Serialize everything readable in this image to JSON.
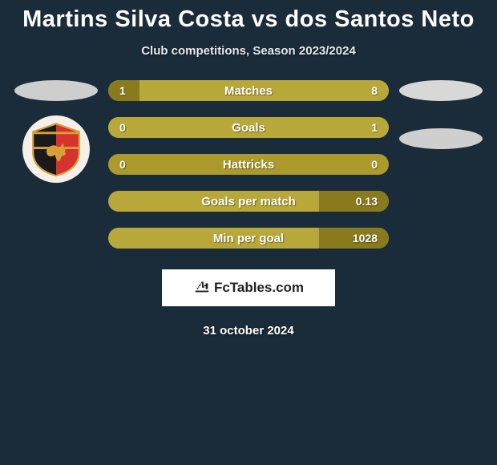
{
  "header": {
    "title": "Martins Silva Costa vs dos Santos Neto",
    "subtitle": "Club competitions, Season 2023/2024"
  },
  "palette": {
    "bar_dark": "#8a7a1e",
    "bar_light": "#b8a83a",
    "bar_full": "#ac9a2c",
    "text": "#ffffff"
  },
  "left_side": {
    "ovals": [
      {
        "color": "#cecece"
      }
    ],
    "crest": {
      "shield_stripe_a": "#1a1a1a",
      "shield_stripe_b": "#d4332e",
      "lion": "#d9a038",
      "bg": "#f5f0e8"
    }
  },
  "right_side": {
    "ovals": [
      {
        "color": "#d8d8d8"
      },
      {
        "color": "#cfcfcf"
      }
    ]
  },
  "stats": [
    {
      "label": "Matches",
      "left_val": "1",
      "right_val": "8",
      "left_pct": 11,
      "right_pct": 89,
      "left_color": "#8a7a1e",
      "right_color": "#b8a83a"
    },
    {
      "label": "Goals",
      "left_val": "0",
      "right_val": "1",
      "left_pct": 0,
      "right_pct": 100,
      "left_color": "#8a7a1e",
      "right_color": "#b8a83a"
    },
    {
      "label": "Hattricks",
      "left_val": "0",
      "right_val": "0",
      "left_pct": 0,
      "right_pct": 0,
      "bg_color": "#ac9a2c"
    },
    {
      "label": "Goals per match",
      "left_val": "",
      "right_val": "0.13",
      "left_pct": 0,
      "right_pct": 25,
      "bg_color": "#b8a83a",
      "right_color": "#8a7a1e"
    },
    {
      "label": "Min per goal",
      "left_val": "",
      "right_val": "1028",
      "left_pct": 0,
      "right_pct": 25,
      "bg_color": "#b8a83a",
      "right_color": "#8a7a1e"
    }
  ],
  "footer": {
    "logo_text": "FcTables.com",
    "date": "31 october 2024"
  }
}
